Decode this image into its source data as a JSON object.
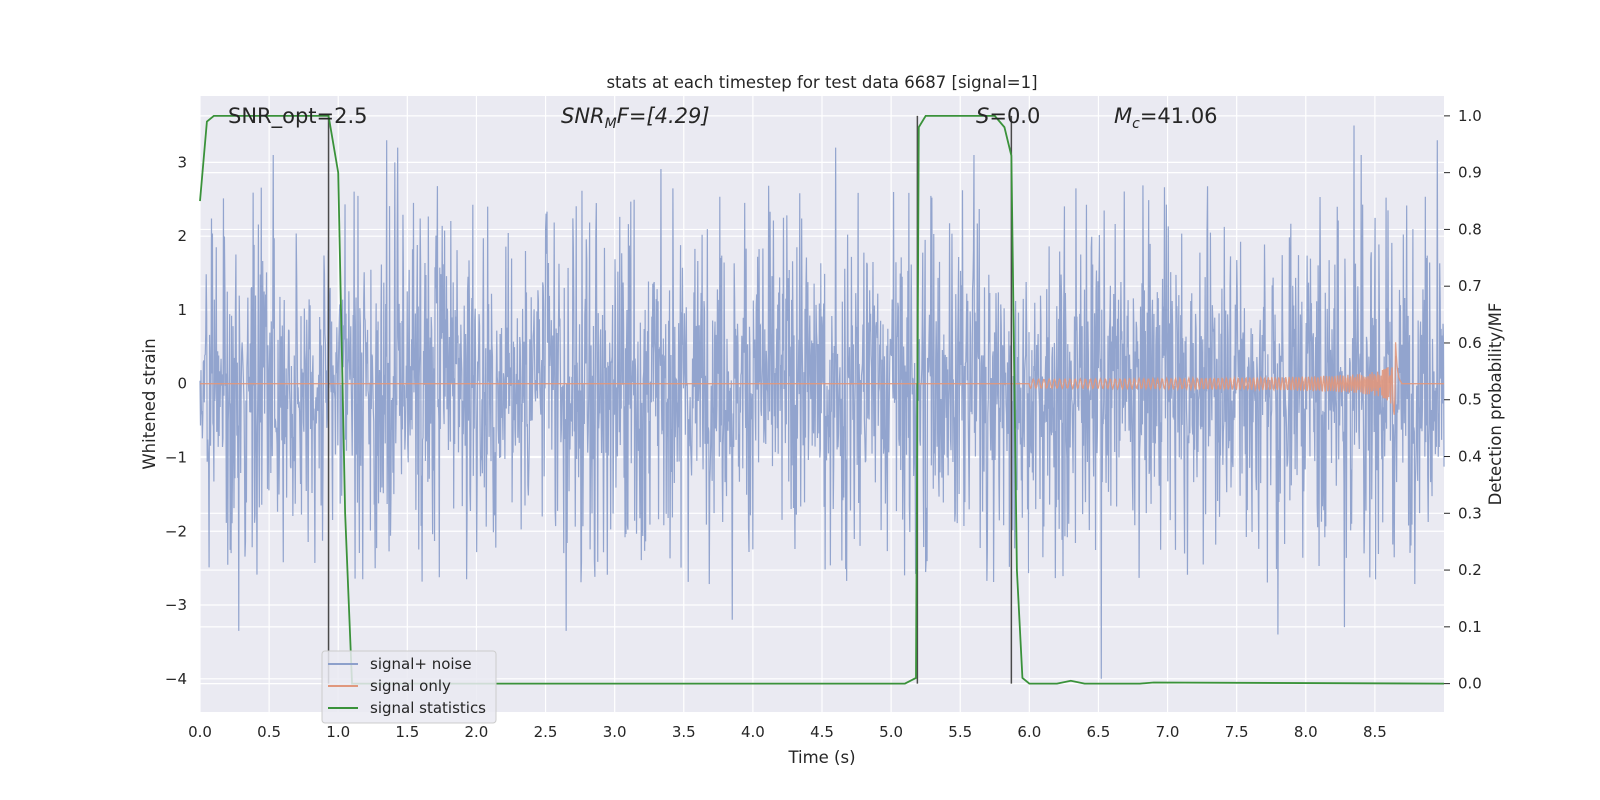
{
  "chart_data": {
    "type": "line",
    "title": "stats at each timestep for test data 6687 [signal=1]",
    "xlabel": "Time (s)",
    "ylabel": "Whitened strain",
    "y2label": "Detection probability/MF",
    "xlim": [
      0.0,
      9.0
    ],
    "ylim": [
      -4.45,
      3.9
    ],
    "y2lim": [
      -0.05,
      1.035
    ],
    "xticks": [
      "0.0",
      "0.5",
      "1.0",
      "1.5",
      "2.0",
      "2.5",
      "3.0",
      "3.5",
      "4.0",
      "4.5",
      "5.0",
      "5.5",
      "6.0",
      "6.5",
      "7.0",
      "7.5",
      "8.0",
      "8.5"
    ],
    "yticks": [
      "3",
      "2",
      "1",
      "0",
      "−1",
      "−2",
      "−3",
      "−4"
    ],
    "y2ticks": [
      "1.0",
      "0.9",
      "0.8",
      "0.7",
      "0.6",
      "0.5",
      "0.4",
      "0.3",
      "0.2",
      "0.1",
      "0.0"
    ],
    "grid": true,
    "legend_position": "lower-left",
    "annotations": {
      "snr_opt": "SNR_opt=2.5",
      "snr_mf_base": "SNR",
      "snr_mf_sub": "M",
      "snr_mf_rest": "F=[4.29]",
      "s_label": "S",
      "s_rest": "=0.0",
      "mc_base": "M",
      "mc_sub": "c",
      "mc_rest": "=41.06"
    },
    "vertical_lines": [
      0.93,
      5.19,
      5.87
    ],
    "series": [
      {
        "name": "signal+ noise",
        "color": "#8da0cb",
        "axis": "left",
        "envelope_typical": 2.3,
        "envelope_peak": 3.55,
        "peaks": [
          [
            0.53,
            3.1
          ],
          [
            1.35,
            3.3
          ],
          [
            1.41,
            3.0
          ],
          [
            1.43,
            3.2
          ],
          [
            4.6,
            3.2
          ],
          [
            5.6,
            3.1
          ],
          [
            8.35,
            3.5
          ],
          [
            8.4,
            3.1
          ],
          [
            8.95,
            3.3
          ],
          [
            0.28,
            -3.35
          ],
          [
            2.65,
            -3.35
          ],
          [
            3.85,
            -3.2
          ],
          [
            7.8,
            -3.4
          ],
          [
            8.28,
            -3.3
          ],
          [
            6.52,
            -4.0
          ]
        ]
      },
      {
        "name": "signal only",
        "color": "#e0977d",
        "axis": "left",
        "chirp_start": 6.0,
        "merger_time": 8.65,
        "peak_amplitude": 0.65
      },
      {
        "name": "signal statistics",
        "color": "#3a923a",
        "axis": "right",
        "x": [
          0.0,
          0.05,
          0.1,
          0.2,
          0.5,
          0.9,
          0.93,
          1.0,
          1.05,
          1.1,
          1.2,
          5.1,
          5.18,
          5.2,
          5.25,
          5.3,
          5.5,
          5.75,
          5.82,
          5.87,
          5.91,
          5.95,
          6.0,
          6.2,
          6.3,
          6.4,
          6.8,
          6.9,
          9.0
        ],
        "y": [
          0.85,
          0.99,
          1.0,
          1.0,
          1.0,
          1.0,
          1.0,
          0.9,
          0.3,
          0.0,
          0.0,
          0.0,
          0.01,
          0.98,
          1.0,
          1.0,
          1.0,
          1.0,
          0.98,
          0.93,
          0.2,
          0.01,
          0.0,
          0.0,
          0.005,
          0.0,
          0.0,
          0.002,
          0.0
        ]
      }
    ]
  }
}
